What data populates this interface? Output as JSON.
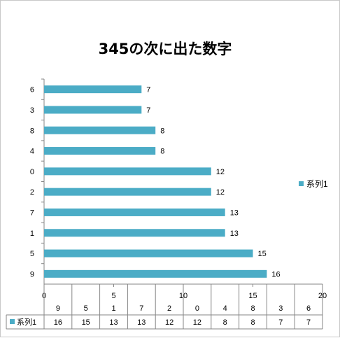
{
  "chart_data": {
    "type": "bar",
    "orientation": "horizontal",
    "title": "345の次に出た数字",
    "categories": [
      "9",
      "5",
      "1",
      "7",
      "2",
      "0",
      "4",
      "8",
      "3",
      "6"
    ],
    "series": [
      {
        "name": "系列1",
        "values": [
          16,
          15,
          13,
          13,
          12,
          12,
          8,
          8,
          7,
          7
        ],
        "color": "#4bacc6"
      }
    ],
    "xlim": [
      0,
      20
    ],
    "x_ticks": [
      "0",
      "5",
      "10",
      "15",
      "20"
    ],
    "grid": false,
    "legend_position": "right",
    "data_table": true
  }
}
